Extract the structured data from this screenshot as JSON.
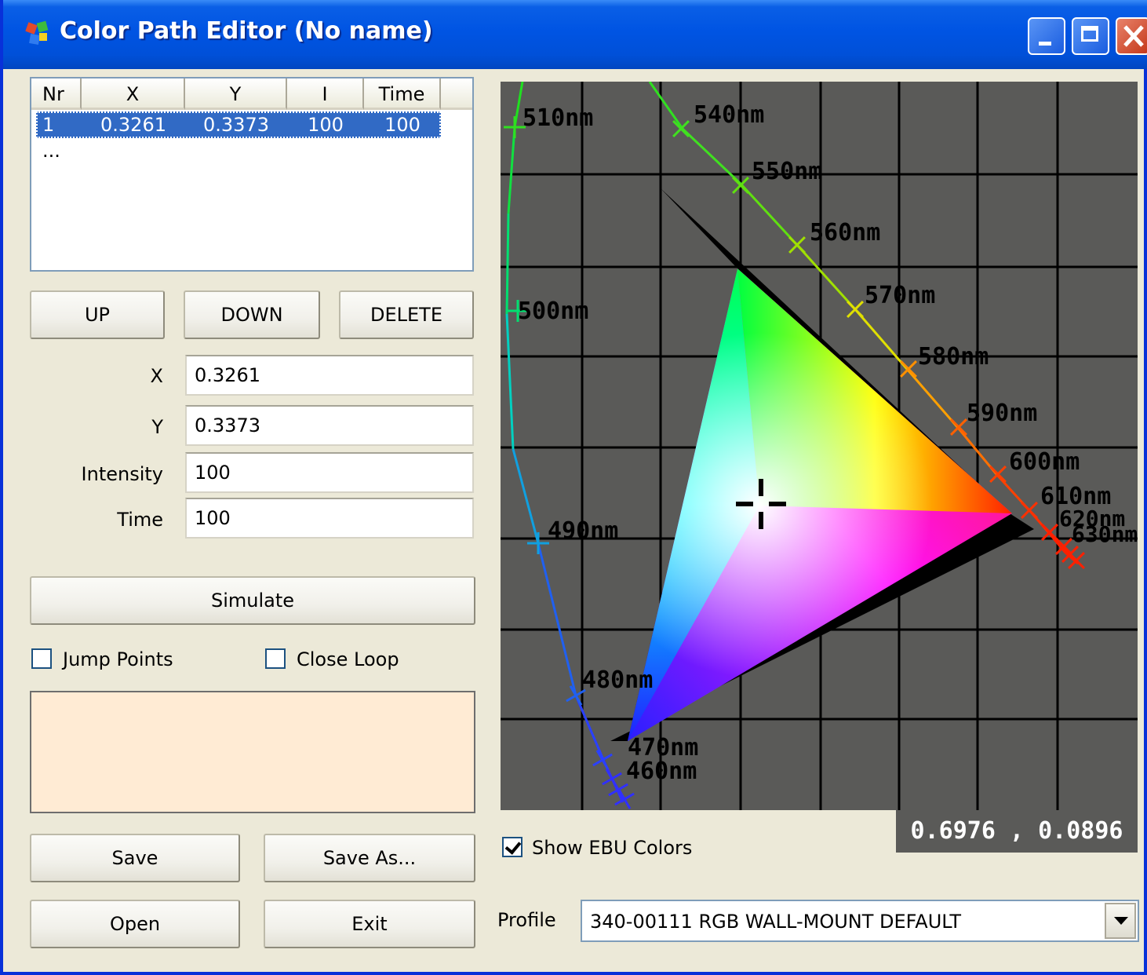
{
  "window": {
    "title": "Color Path Editor (No name)"
  },
  "list": {
    "columns": [
      "Nr",
      "X",
      "Y",
      "I",
      "Time"
    ],
    "rows": [
      {
        "nr": "1",
        "x": "0.3261",
        "y": "0.3373",
        "i": "100",
        "time": "100"
      }
    ],
    "more": "..."
  },
  "buttons": {
    "up": "UP",
    "down": "DOWN",
    "delete": "DELETE",
    "simulate": "Simulate",
    "save": "Save",
    "save_as": "Save As...",
    "open": "Open",
    "exit": "Exit"
  },
  "fields": {
    "x": {
      "label": "X",
      "value": "0.3261"
    },
    "y": {
      "label": "Y",
      "value": "0.3373"
    },
    "intensity": {
      "label": "Intensity",
      "value": "100"
    },
    "time": {
      "label": "Time",
      "value": "100"
    }
  },
  "options": {
    "jump_points": {
      "label": "Jump Points",
      "checked": false
    },
    "close_loop": {
      "label": "Close Loop",
      "checked": false
    },
    "show_ebu": {
      "label": "Show EBU Colors",
      "checked": true
    }
  },
  "preview_color": "#ffebd4",
  "chart": {
    "background": "#5a5a58",
    "wavelength_labels": [
      "510nm",
      "540nm",
      "550nm",
      "560nm",
      "570nm",
      "580nm",
      "590nm",
      "600nm",
      "610nm",
      "620nm",
      "630nm",
      "500nm",
      "490nm",
      "480nm",
      "470nm",
      "460nm"
    ],
    "coordinate_readout": "0.6976 , 0.0896"
  },
  "profile": {
    "label": "Profile",
    "value": "340-00111 RGB WALL-MOUNT DEFAULT"
  }
}
